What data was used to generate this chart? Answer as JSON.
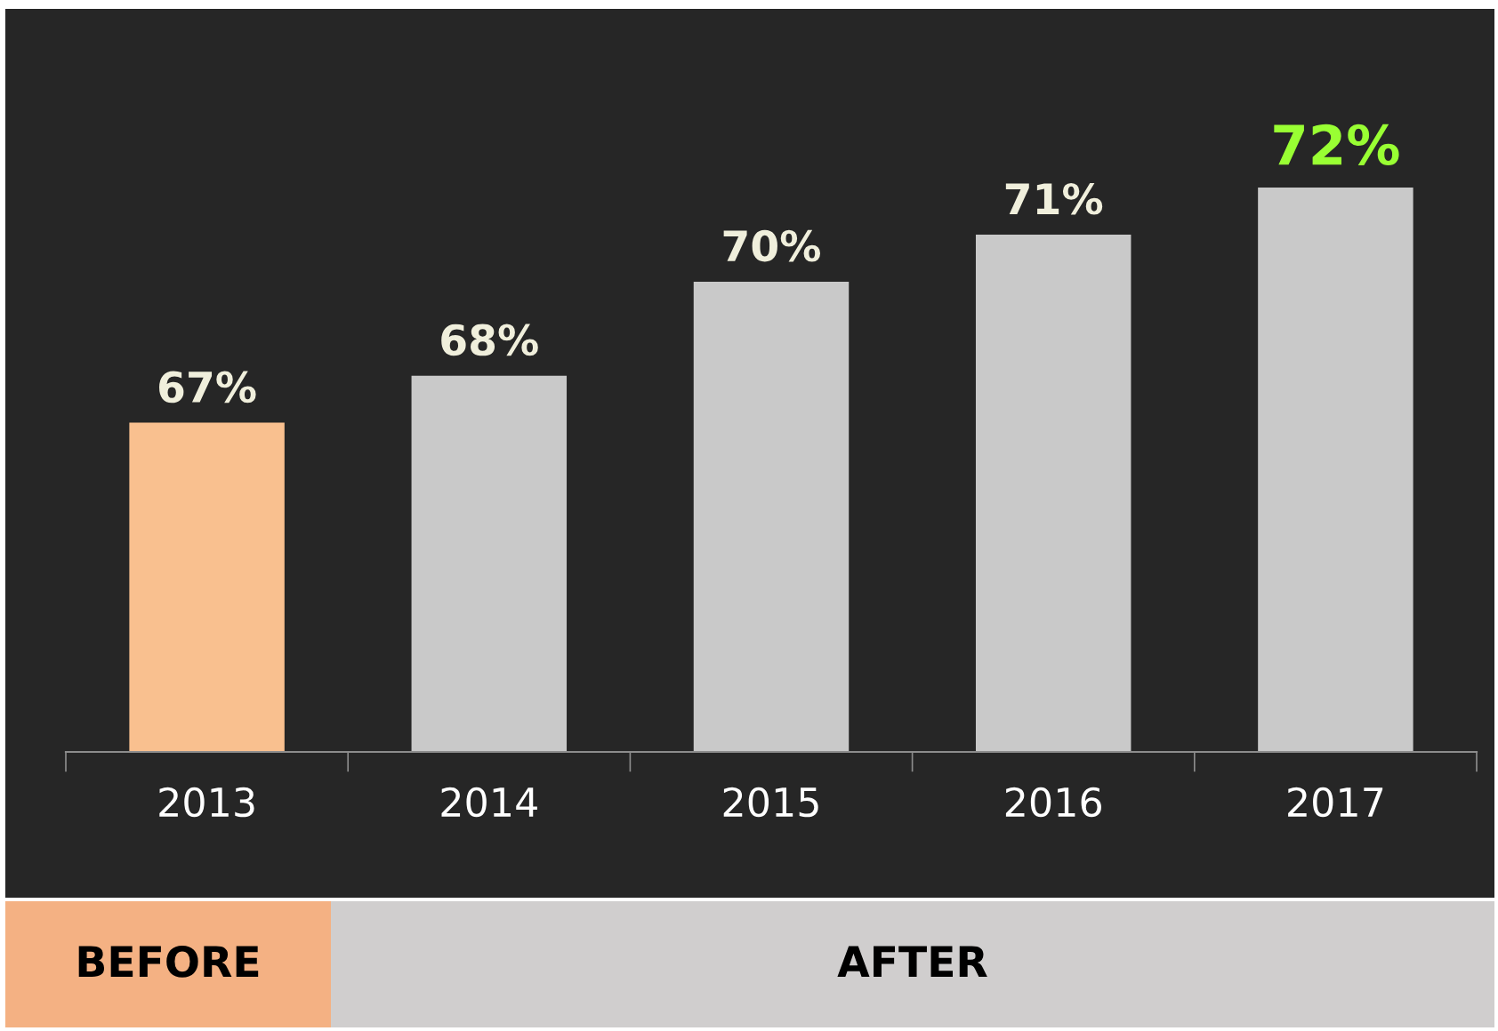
{
  "chart_data": {
    "type": "bar",
    "categories": [
      "2013",
      "2014",
      "2015",
      "2016",
      "2017"
    ],
    "values": [
      67,
      68,
      70,
      71,
      72
    ],
    "value_labels": [
      "67%",
      "68%",
      "70%",
      "71%",
      "72%"
    ],
    "colors": [
      "#f9c08f",
      "#c9c9c9",
      "#c9c9c9",
      "#c9c9c9",
      "#c9c9c9"
    ],
    "ylim": [
      60,
      75.8
    ],
    "tick_labels": "x",
    "grid": false,
    "annotations": [
      "BEFORE",
      "AFTER"
    ]
  }
}
